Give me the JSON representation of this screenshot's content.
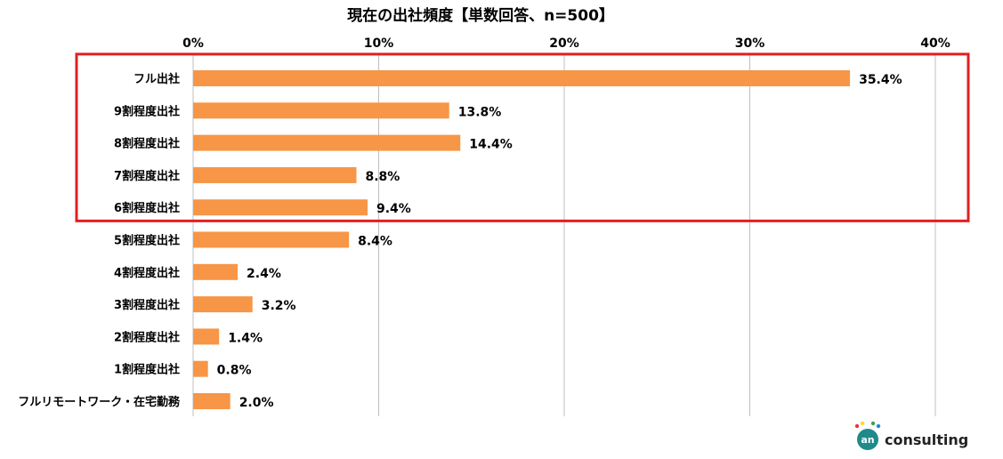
{
  "chart_data": {
    "type": "bar",
    "orientation": "horizontal",
    "title": "現在の出社頻度【単数回答、n=500】",
    "categories": [
      "フル出社",
      "9割程度出社",
      "8割程度出社",
      "7割程度出社",
      "6割程度出社",
      "5割程度出社",
      "4割程度出社",
      "3割程度出社",
      "2割程度出社",
      "1割程度出社",
      "フルリモートワーク・在宅勤務"
    ],
    "values": [
      35.4,
      13.8,
      14.4,
      8.8,
      9.4,
      8.4,
      2.4,
      3.2,
      1.4,
      0.8,
      2.0
    ],
    "value_labels": [
      "35.4%",
      "13.8%",
      "14.4%",
      "8.8%",
      "9.4%",
      "8.4%",
      "2.4%",
      "3.2%",
      "1.4%",
      "0.8%",
      "2.0%"
    ],
    "xlim": [
      0,
      40
    ],
    "xticks": [
      0,
      10,
      20,
      30,
      40
    ],
    "xtick_labels": [
      "0%",
      "10%",
      "20%",
      "30%",
      "40%"
    ],
    "x_axis_position": "top",
    "grid": true,
    "bar_color": "#F79646",
    "highlight": {
      "categories_from": "フル出社",
      "categories_to": "6割程度出社",
      "color": "#E02020"
    }
  },
  "logo": {
    "mark": "an",
    "text": "consulting",
    "mark_color": "#1F8A8A",
    "dot_colors": [
      "#E53935",
      "#FDD835",
      "#43A047",
      "#1E88E5"
    ]
  }
}
